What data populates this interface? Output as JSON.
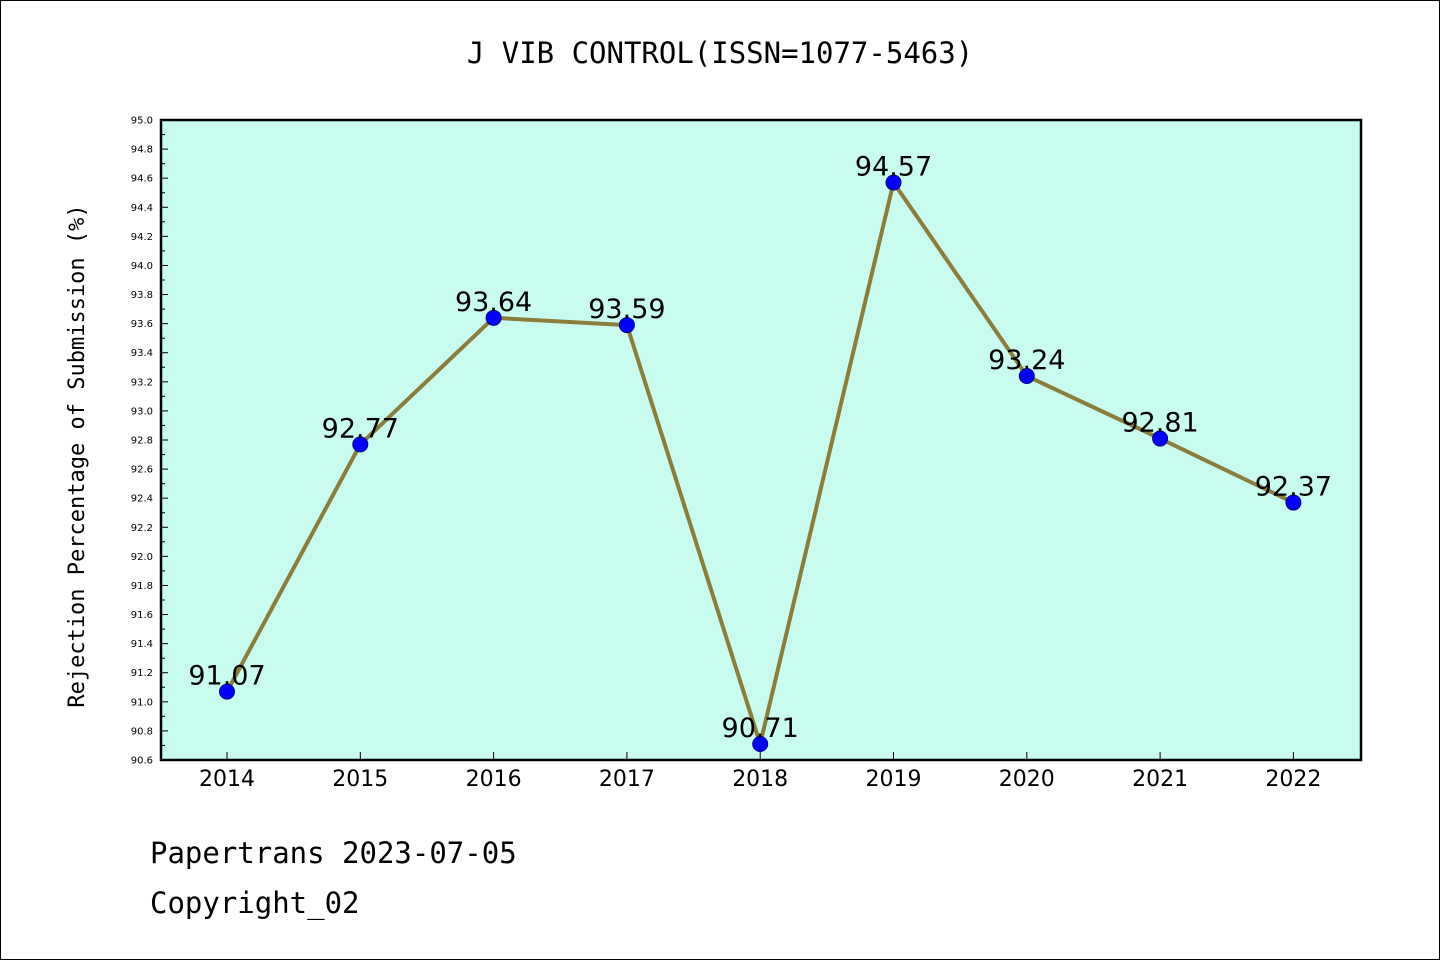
{
  "chart_data": {
    "type": "line",
    "title": "J VIB CONTROL(ISSN=1077-5463)",
    "xlabel": "",
    "ylabel": "Rejection Percentage of Submission (%)",
    "categories": [
      "2014",
      "2015",
      "2016",
      "2017",
      "2018",
      "2019",
      "2020",
      "2021",
      "2022"
    ],
    "values": [
      91.07,
      92.77,
      93.64,
      93.59,
      90.71,
      94.57,
      93.24,
      92.81,
      92.37
    ],
    "data_labels": [
      "91.07",
      "92.77",
      "93.64",
      "93.59",
      "90.71",
      "94.57",
      "93.24",
      "92.81",
      "92.37"
    ],
    "ylim": [
      90.6,
      95.0
    ],
    "yticks": [
      "90.6",
      "90.8",
      "91.0",
      "91.2",
      "91.4",
      "91.6",
      "91.8",
      "92.0",
      "92.2",
      "92.4",
      "92.6",
      "92.8",
      "93.0",
      "93.2",
      "93.4",
      "93.6",
      "93.8",
      "94.0",
      "94.2",
      "94.4",
      "94.6",
      "94.8",
      "95.0"
    ],
    "grid": false,
    "colors": {
      "plot_background": "#c8fcee",
      "line": "#8b7d3a",
      "marker": "#0000ff"
    }
  },
  "footer": {
    "date_line": "Papertrans 2023-07-05",
    "copyright_line": "Copyright_02"
  }
}
